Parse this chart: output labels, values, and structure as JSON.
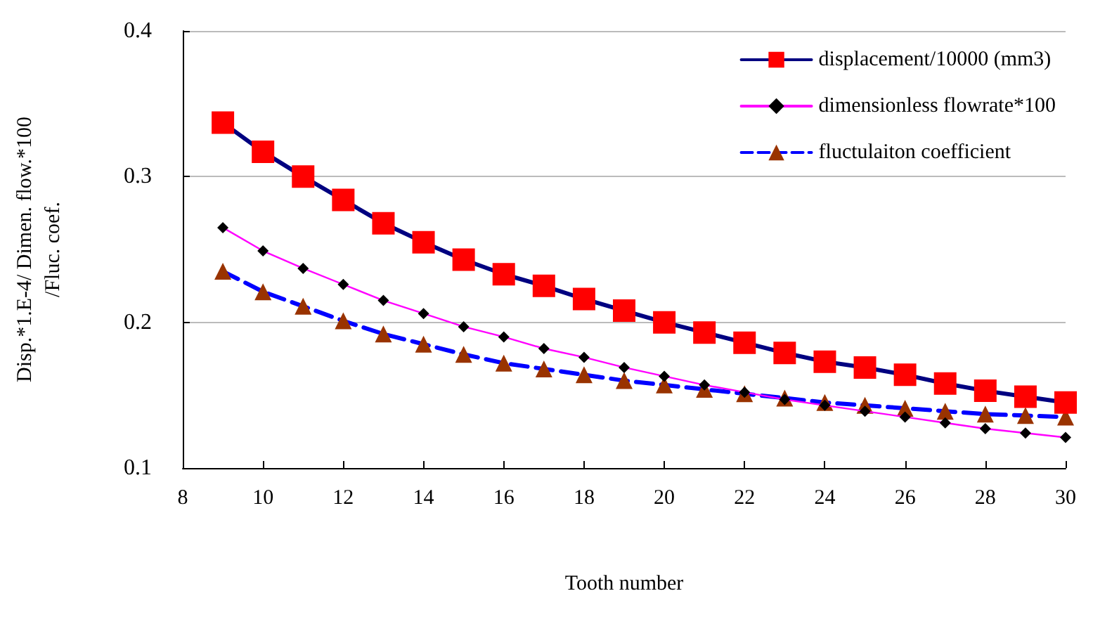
{
  "chart_data": {
    "type": "line",
    "xlabel": "Tooth number",
    "ylabel": "Disp.*1.E-4/ Dimen. flow.*100\n/Fluc. coef.",
    "x": [
      9,
      10,
      11,
      12,
      13,
      14,
      15,
      16,
      17,
      18,
      19,
      20,
      21,
      22,
      23,
      24,
      25,
      26,
      27,
      28,
      29,
      30
    ],
    "xlim": [
      8,
      30
    ],
    "xticks": [
      8,
      10,
      12,
      14,
      16,
      18,
      20,
      22,
      24,
      26,
      28,
      30
    ],
    "ylim": [
      0.1,
      0.4
    ],
    "yticks": [
      0.1,
      0.2,
      0.3,
      0.4
    ],
    "grid": "y",
    "legend": "top right",
    "series": [
      {
        "name": "displacement/10000 (mm3)",
        "color": "#000080",
        "marker": "square",
        "line_style": "solid",
        "colors": [
          "#ff0000",
          "#ff0000",
          "#ff0000",
          "#ff0000",
          "#ff0000",
          "#ff0000",
          "#ff0000",
          "#ff0000",
          "#ff0000",
          "#ff0000",
          "#ff0000",
          "#ff0000",
          "#ff0000",
          "#ff0000",
          "#ff0000",
          "#ff0000",
          "#ff0000",
          "#ff0000",
          "#ff0000",
          "#ff0000",
          "#ff0000",
          "#ff0000"
        ],
        "values": [
          0.337,
          0.317,
          0.3,
          0.284,
          0.268,
          0.255,
          0.243,
          0.233,
          0.225,
          0.216,
          0.208,
          0.2,
          0.193,
          0.186,
          0.179,
          0.173,
          0.169,
          0.164,
          0.158,
          0.153,
          0.149,
          0.145
        ]
      },
      {
        "name": "dimensionless flowrate*100",
        "color": "#ff00ff",
        "marker": "diamond",
        "line_style": "solid",
        "colors": [
          "#000000",
          "#000000",
          "#000000",
          "#000000",
          "#000000",
          "#000000",
          "#000000",
          "#000000",
          "#000000",
          "#000000",
          "#000000",
          "#000000",
          "#000000",
          "#000000",
          "#000000",
          "#000000",
          "#000000",
          "#000000",
          "#000000",
          "#000000",
          "#000000",
          "#000000"
        ],
        "values": [
          0.265,
          0.249,
          0.237,
          0.226,
          0.215,
          0.206,
          0.197,
          0.19,
          0.182,
          0.176,
          0.169,
          0.163,
          0.157,
          0.152,
          0.147,
          0.143,
          0.139,
          0.135,
          0.131,
          0.127,
          0.124,
          0.121
        ]
      },
      {
        "name": "fluctulaiton coefficient",
        "color": "#0000ff",
        "marker": "triangle",
        "line_style": "dashed",
        "colors": [
          "#993300",
          "#993300",
          "#993300",
          "#993300",
          "#993300",
          "#993300",
          "#993300",
          "#993300",
          "#993300",
          "#993300",
          "#993300",
          "#993300",
          "#993300",
          "#993300",
          "#993300",
          "#993300",
          "#993300",
          "#993300",
          "#993300",
          "#993300",
          "#993300",
          "#993300"
        ],
        "values": [
          0.235,
          0.221,
          0.211,
          0.201,
          0.192,
          0.185,
          0.178,
          0.172,
          0.168,
          0.164,
          0.16,
          0.157,
          0.154,
          0.151,
          0.148,
          0.145,
          0.143,
          0.141,
          0.139,
          0.137,
          0.136,
          0.135
        ]
      }
    ]
  }
}
